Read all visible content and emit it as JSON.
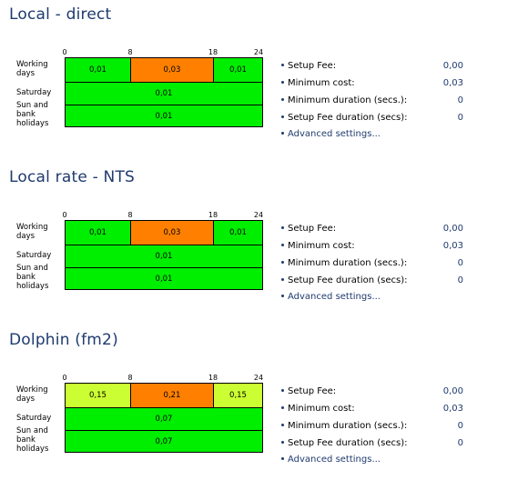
{
  "colors": {
    "title": "#1f3a6e",
    "link": "#1f3a6e",
    "green": "#00ee00",
    "orange": "#ff8000",
    "lime": "#ccff33"
  },
  "hour_ticks": [
    "0",
    "8",
    "18",
    "24"
  ],
  "row_labels": {
    "working_days": "Working days",
    "saturday": "Saturday",
    "holidays": "Sun and bank holidays"
  },
  "setting_labels": {
    "setup_fee": "Setup Fee:",
    "minimum_cost": "Minimum cost:",
    "minimum_duration": "Minimum duration (secs.):",
    "setup_fee_duration": "Setup Fee duration (secs):",
    "advanced": "Advanced settings..."
  },
  "sections": [
    {
      "title": "Local - direct",
      "working_days": [
        {
          "value": "0,01",
          "color": "#00ee00"
        },
        {
          "value": "0,03",
          "color": "#ff8000"
        },
        {
          "value": "0,01",
          "color": "#00ee00"
        }
      ],
      "saturday": {
        "value": "0,01",
        "color": "#00ee00"
      },
      "holidays": {
        "value": "0,01",
        "color": "#00ee00"
      },
      "settings": {
        "setup_fee": "0,00",
        "minimum_cost": "0,03",
        "minimum_duration": "0",
        "setup_fee_duration": "0"
      }
    },
    {
      "title": "Local rate - NTS",
      "working_days": [
        {
          "value": "0,01",
          "color": "#00ee00"
        },
        {
          "value": "0,03",
          "color": "#ff8000"
        },
        {
          "value": "0,01",
          "color": "#00ee00"
        }
      ],
      "saturday": {
        "value": "0,01",
        "color": "#00ee00"
      },
      "holidays": {
        "value": "0,01",
        "color": "#00ee00"
      },
      "settings": {
        "setup_fee": "0,00",
        "minimum_cost": "0,03",
        "minimum_duration": "0",
        "setup_fee_duration": "0"
      }
    },
    {
      "title": "Dolphin (fm2)",
      "working_days": [
        {
          "value": "0,15",
          "color": "#ccff33"
        },
        {
          "value": "0,21",
          "color": "#ff8000"
        },
        {
          "value": "0,15",
          "color": "#ccff33"
        }
      ],
      "saturday": {
        "value": "0,07",
        "color": "#00ee00"
      },
      "holidays": {
        "value": "0,07",
        "color": "#00ee00"
      },
      "settings": {
        "setup_fee": "0,00",
        "minimum_cost": "0,03",
        "minimum_duration": "0",
        "setup_fee_duration": "0"
      }
    }
  ]
}
